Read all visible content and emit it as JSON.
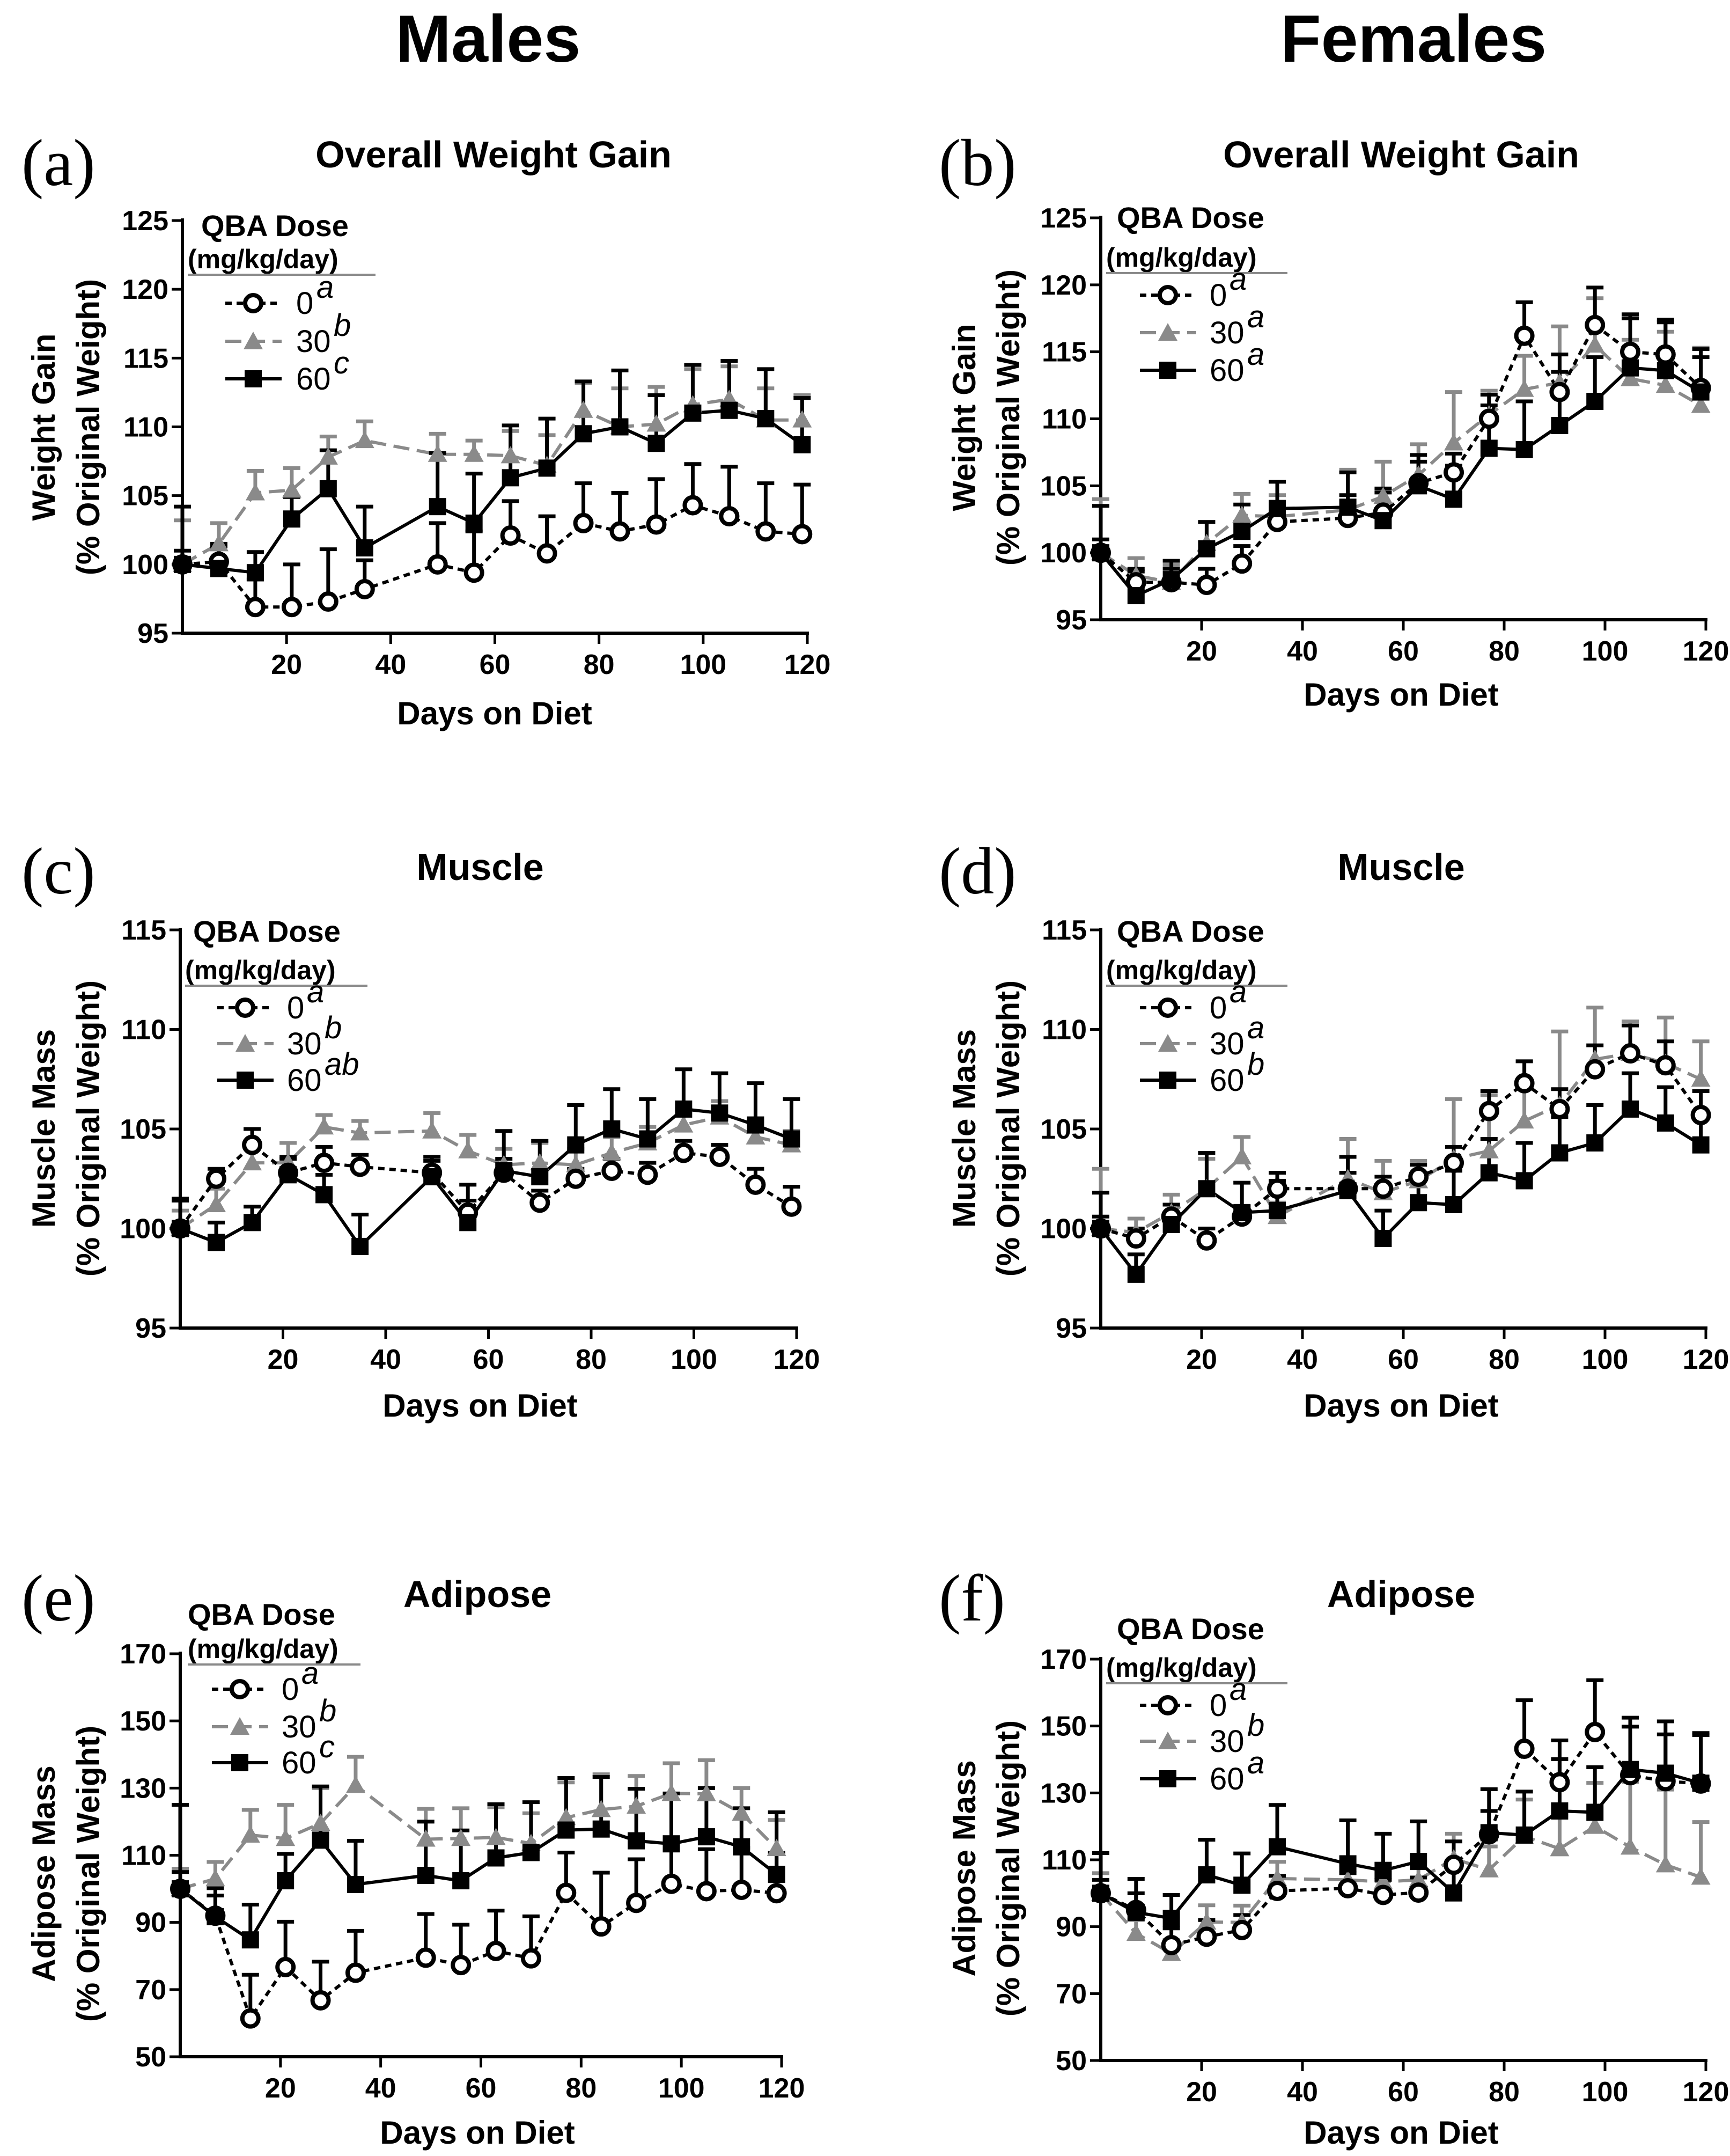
{
  "figure": {
    "column_titles": [
      "Males",
      "Females"
    ],
    "x_ticks": [
      20,
      40,
      60,
      80,
      100,
      120
    ],
    "legend_title": "QBA Dose",
    "legend_unit": "(mg/kg/day)",
    "series_colors": {
      "0": "#000000",
      "30": "#8a8a8a",
      "60": "#000000"
    },
    "days": [
      0,
      7,
      14,
      21,
      28,
      35,
      49,
      56,
      63,
      70,
      77,
      84,
      91,
      98,
      105,
      112,
      119
    ]
  },
  "chart_data": [
    {
      "type": "line",
      "panel": "(a)",
      "title": "Overall Weight Gain",
      "ylabel": [
        "Weight Gain",
        "(% Original Weight)"
      ],
      "xlabel": "Days on Diet",
      "ylim": [
        95,
        125
      ],
      "yticks": [
        95,
        100,
        105,
        110,
        115,
        120,
        125
      ],
      "legend": [
        {
          "dose": "0",
          "letter": "a"
        },
        {
          "dose": "30",
          "letter": "b"
        },
        {
          "dose": "60",
          "letter": "c"
        }
      ],
      "series": [
        {
          "name": "0",
          "values": [
            100,
            100.2,
            96.9,
            96.9,
            97.3,
            98.2,
            100,
            99.4,
            102.1,
            100.8,
            103,
            102.4,
            102.9,
            104.3,
            103.5,
            102.4,
            102.2
          ],
          "err": [
            1,
            1.3,
            2,
            3.1,
            3.8,
            2.1,
            3,
            3,
            2.5,
            2.7,
            2.9,
            2.8,
            3.3,
            3,
            3.6,
            3.5,
            3.6
          ]
        },
        {
          "name": "30",
          "values": [
            100,
            101.5,
            105.2,
            105.4,
            107.8,
            109,
            108,
            108,
            107.9,
            107.2,
            111.2,
            110,
            110.2,
            111.6,
            112,
            110.5,
            110.5
          ],
          "err": [
            3.2,
            1.5,
            1.6,
            1.6,
            1.5,
            1.4,
            1.5,
            1,
            1.8,
            2.2,
            2,
            2.8,
            2.7,
            2.6,
            2.4,
            2.3,
            1.8
          ]
        },
        {
          "name": "60",
          "values": [
            100,
            99.7,
            99.4,
            103.3,
            105.5,
            101.2,
            104.2,
            103,
            106.3,
            107,
            109.5,
            110,
            108.8,
            111,
            111.2,
            110.6,
            108.7
          ],
          "err": [
            4.2,
            1.6,
            1.5,
            1.6,
            2.8,
            3,
            3.9,
            3.6,
            3.8,
            3.6,
            3.8,
            4.1,
            3.5,
            3.5,
            3.6,
            3.6,
            3.4
          ]
        }
      ]
    },
    {
      "type": "line",
      "panel": "(b)",
      "title": "Overall Weight Gain",
      "ylabel": [
        "Weight Gain",
        "(% Original Weight)"
      ],
      "xlabel": "Days on Diet",
      "ylim": [
        95,
        125
      ],
      "yticks": [
        95,
        100,
        105,
        110,
        115,
        120,
        125
      ],
      "legend": [
        {
          "dose": "0",
          "letter": "a"
        },
        {
          "dose": "30",
          "letter": "a"
        },
        {
          "dose": "60",
          "letter": "a"
        }
      ],
      "series": [
        {
          "name": "0",
          "values": [
            100,
            97.8,
            97.8,
            97.6,
            99.2,
            102.3,
            102.6,
            103,
            105.2,
            106,
            110,
            116.2,
            112,
            117,
            115,
            114.8,
            112.3
          ],
          "err": [
            1,
            1,
            1,
            1.2,
            1.3,
            1.5,
            1.7,
            1.5,
            1.6,
            1.4,
            1.8,
            2.5,
            2.8,
            2.8,
            2.5,
            2.4,
            2.3
          ]
        },
        {
          "name": "30",
          "values": [
            100,
            98.3,
            97.8,
            100.7,
            102.8,
            102.7,
            103.2,
            104.2,
            105.8,
            108.2,
            110.3,
            112.2,
            112.7,
            115.5,
            113,
            112.5,
            111
          ],
          "err": [
            4,
            1.3,
            1.3,
            1.6,
            1.6,
            1.6,
            3,
            2.6,
            2.3,
            3.8,
            1.8,
            2.5,
            4.2,
            3.5,
            2.9,
            4,
            4.3
          ]
        },
        {
          "name": "60",
          "values": [
            100,
            96.8,
            98,
            100.3,
            101.6,
            103.3,
            103.4,
            102.4,
            105,
            104,
            107.8,
            107.7,
            109.5,
            111.3,
            113.8,
            113.6,
            112
          ],
          "err": [
            3.5,
            1.8,
            1.4,
            2,
            2,
            2,
            2.6,
            2.4,
            2.3,
            2.5,
            3.2,
            3.6,
            4,
            3.3,
            4,
            3.8,
            3.2
          ]
        }
      ]
    },
    {
      "type": "line",
      "panel": "(c)",
      "title": "Muscle",
      "ylabel": [
        "Muscle Mass",
        "(% Original Weight)"
      ],
      "xlabel": "Days on Diet",
      "ylim": [
        95,
        115
      ],
      "yticks": [
        95,
        100,
        105,
        110,
        115
      ],
      "legend": [
        {
          "dose": "0",
          "letter": "a"
        },
        {
          "dose": "30",
          "letter": "b"
        },
        {
          "dose": "60",
          "letter": "ab"
        }
      ],
      "series": [
        {
          "name": "0",
          "values": [
            100,
            102.5,
            104.2,
            102.8,
            103.3,
            103.1,
            102.8,
            100.8,
            102.8,
            101.3,
            102.5,
            102.9,
            102.7,
            103.8,
            103.6,
            102.2,
            101.1
          ],
          "err": [
            1.5,
            0.5,
            0.8,
            0.7,
            0.8,
            0.6,
            0.6,
            0.6,
            0.7,
            0.6,
            0.5,
            0.6,
            0.6,
            0.6,
            0.6,
            0.8,
            1
          ]
        },
        {
          "name": "30",
          "values": [
            100,
            101.2,
            103.3,
            103.3,
            105.1,
            104.8,
            104.9,
            103.9,
            103.2,
            103.3,
            103.2,
            103.8,
            104.3,
            105.2,
            105.6,
            104.6,
            104.2
          ],
          "err": [
            0.9,
            0.8,
            0.8,
            1,
            0.6,
            0.6,
            0.9,
            0.8,
            0.8,
            1,
            0.8,
            0.8,
            0.8,
            0.8,
            0.8,
            0.8,
            0.7
          ]
        },
        {
          "name": "60",
          "values": [
            100,
            99.3,
            100.3,
            102.7,
            101.7,
            99.1,
            102.6,
            100.3,
            102.9,
            102.6,
            104.2,
            105,
            104.5,
            106,
            105.8,
            105.2,
            104.5
          ],
          "err": [
            1.4,
            1,
            0.8,
            0.9,
            1,
            1.6,
            1,
            1.9,
            2,
            1.8,
            2,
            2,
            2,
            2,
            2,
            2.1,
            2
          ]
        }
      ]
    },
    {
      "type": "line",
      "panel": "(d)",
      "title": "Muscle",
      "ylabel": [
        "Muscle Mass",
        "(% Original Weight)"
      ],
      "xlabel": "Days on Diet",
      "ylim": [
        95,
        115
      ],
      "yticks": [
        95,
        100,
        105,
        110,
        115
      ],
      "legend": [
        {
          "dose": "0",
          "letter": "a"
        },
        {
          "dose": "30",
          "letter": "a"
        },
        {
          "dose": "60",
          "letter": "b"
        }
      ],
      "series": [
        {
          "name": "0",
          "values": [
            100,
            99.5,
            100.6,
            99.4,
            100.6,
            102,
            102,
            102,
            102.6,
            103.3,
            105.9,
            107.3,
            106,
            108,
            108.8,
            108.2,
            105.7
          ],
          "err": [
            0.6,
            0.5,
            0.6,
            0.6,
            0.5,
            0.8,
            0.8,
            0.6,
            0.6,
            0.8,
            1,
            1.1,
            1,
            1.2,
            1.4,
            1.2,
            1.2
          ]
        },
        {
          "name": "30",
          "values": [
            100,
            99.8,
            100.8,
            102,
            103.6,
            100.6,
            102.5,
            101.8,
            102.4,
            103.5,
            103.9,
            105.4,
            106.2,
            108.5,
            108.8,
            108.3,
            107.5
          ],
          "err": [
            3,
            0.7,
            0.9,
            1.5,
            1,
            0.7,
            2,
            1.6,
            1,
            3,
            2.8,
            3,
            3.7,
            2.6,
            1.6,
            2.3,
            1.9
          ]
        },
        {
          "name": "60",
          "values": [
            100,
            97.7,
            100.2,
            102,
            100.8,
            100.9,
            101.9,
            99.5,
            101.3,
            101.2,
            102.8,
            102.4,
            103.8,
            104.3,
            106,
            105.3,
            104.2
          ],
          "err": [
            1.8,
            1,
            1,
            1.8,
            1.5,
            1.5,
            1.7,
            1.4,
            1.5,
            1.7,
            1.7,
            1.9,
            1.8,
            1.9,
            1.8,
            1.8,
            1.6
          ]
        }
      ]
    },
    {
      "type": "line",
      "panel": "(e)",
      "title": "Adipose",
      "ylabel": [
        "Adipose Mass",
        "(% Original Weight)"
      ],
      "xlabel": "Days on Diet",
      "ylim": [
        50,
        170
      ],
      "yticks": [
        50,
        70,
        90,
        110,
        130,
        150,
        170
      ],
      "legend": [
        {
          "dose": "0",
          "letter": "a"
        },
        {
          "dose": "30",
          "letter": "b"
        },
        {
          "dose": "60",
          "letter": "c"
        }
      ],
      "series": [
        {
          "name": "0",
          "values": [
            100,
            92,
            61.4,
            76.7,
            66.8,
            75,
            79.5,
            77.3,
            81.5,
            79.3,
            98.8,
            88.8,
            95.8,
            101.5,
            99.3,
            99.7,
            98.7
          ],
          "err": [
            5,
            6,
            13,
            13.5,
            11.5,
            12.5,
            13,
            12,
            12,
            12.5,
            12,
            16,
            13,
            12.5,
            12.5,
            12.5,
            12
          ]
        },
        {
          "name": "30",
          "values": [
            100,
            103,
            116,
            115,
            119.5,
            130.8,
            114.8,
            115,
            115.3,
            113.5,
            121.2,
            123.6,
            124.6,
            128.4,
            128.3,
            122.5,
            112
          ],
          "err": [
            6,
            5,
            7.5,
            10,
            10.5,
            8.5,
            9,
            9,
            9,
            9,
            10.5,
            10.5,
            9,
            9,
            10,
            7.5,
            8.5
          ]
        },
        {
          "name": "60",
          "values": [
            100,
            91.7,
            84.8,
            102.4,
            114.5,
            101.3,
            104,
            102.4,
            109.2,
            110.8,
            117.5,
            117.8,
            114.3,
            113.4,
            115.5,
            112.5,
            104.3
          ],
          "err": [
            25,
            8.5,
            10.5,
            8,
            16,
            13,
            16,
            15,
            16,
            15,
            15.5,
            15.5,
            15.5,
            15,
            14.5,
            11.5,
            18.5
          ]
        }
      ]
    },
    {
      "type": "line",
      "panel": "(f)",
      "title": "Adipose",
      "ylabel": [
        "Adipose Mass",
        "(% Original Weight)"
      ],
      "xlabel": "Days on Diet",
      "ylim": [
        50,
        170
      ],
      "yticks": [
        50,
        70,
        90,
        110,
        130,
        150,
        170
      ],
      "legend": [
        {
          "dose": "0",
          "letter": "a"
        },
        {
          "dose": "30",
          "letter": "b"
        },
        {
          "dose": "60",
          "letter": "a"
        }
      ],
      "series": [
        {
          "name": "0",
          "values": [
            100,
            95,
            84.5,
            87,
            89,
            100.7,
            101.5,
            99.5,
            100.2,
            108.5,
            117.6,
            143.2,
            133.2,
            148.2,
            135.3,
            133.5,
            132.8
          ],
          "err": [
            4,
            5,
            5,
            5,
            4.5,
            4.5,
            4.5,
            4.5,
            4.5,
            7,
            7,
            14.5,
            12.5,
            15.5,
            14.5,
            14,
            14.5
          ]
        },
        {
          "name": "30",
          "values": [
            100,
            88,
            82,
            91.4,
            91.3,
            104.4,
            104,
            103.4,
            104,
            110.3,
            107,
            117,
            113.3,
            120,
            113.8,
            108.5,
            104.8
          ],
          "err": [
            6,
            4,
            4,
            5,
            5,
            5,
            4.5,
            5.5,
            5.5,
            7.5,
            7,
            11,
            10,
            13,
            19.5,
            22.5,
            16.5
          ]
        },
        {
          "name": "60",
          "values": [
            100,
            94.3,
            92.5,
            105.5,
            102.4,
            113.9,
            108.8,
            106.8,
            109.5,
            100.1,
            118.1,
            117.4,
            124.6,
            124.2,
            137,
            135.9,
            132.9
          ],
          "err": [
            12,
            10,
            7,
            10.5,
            9.5,
            12.5,
            13,
            11,
            12,
            8,
            13,
            13,
            15.5,
            13.5,
            15.5,
            15.5,
            15
          ]
        }
      ]
    }
  ]
}
